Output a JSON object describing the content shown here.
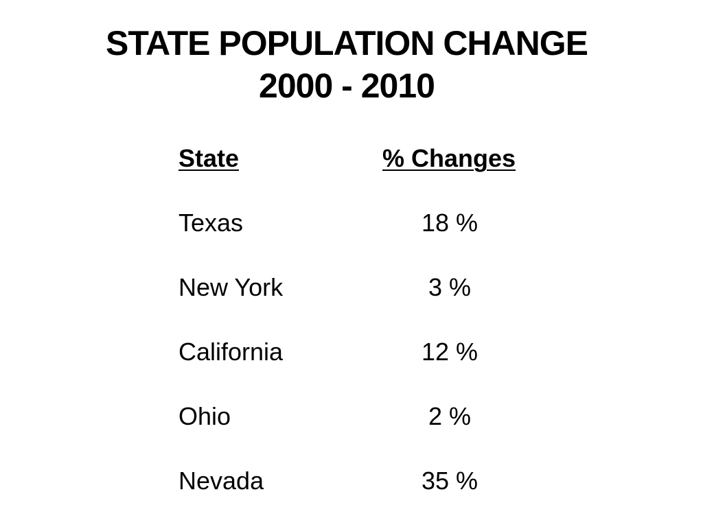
{
  "slide": {
    "title_line1": "STATE POPULATION CHANGE",
    "title_line2": "2000 - 2010"
  },
  "table": {
    "headers": {
      "state": "State",
      "change": "% Changes"
    },
    "rows": [
      {
        "state": "Texas",
        "change": "18 %"
      },
      {
        "state": "New York",
        "change": "3 %"
      },
      {
        "state": "California",
        "change": "12 %"
      },
      {
        "state": "Ohio",
        "change": "2 %"
      },
      {
        "state": "Nevada",
        "change": "35 %"
      }
    ]
  }
}
